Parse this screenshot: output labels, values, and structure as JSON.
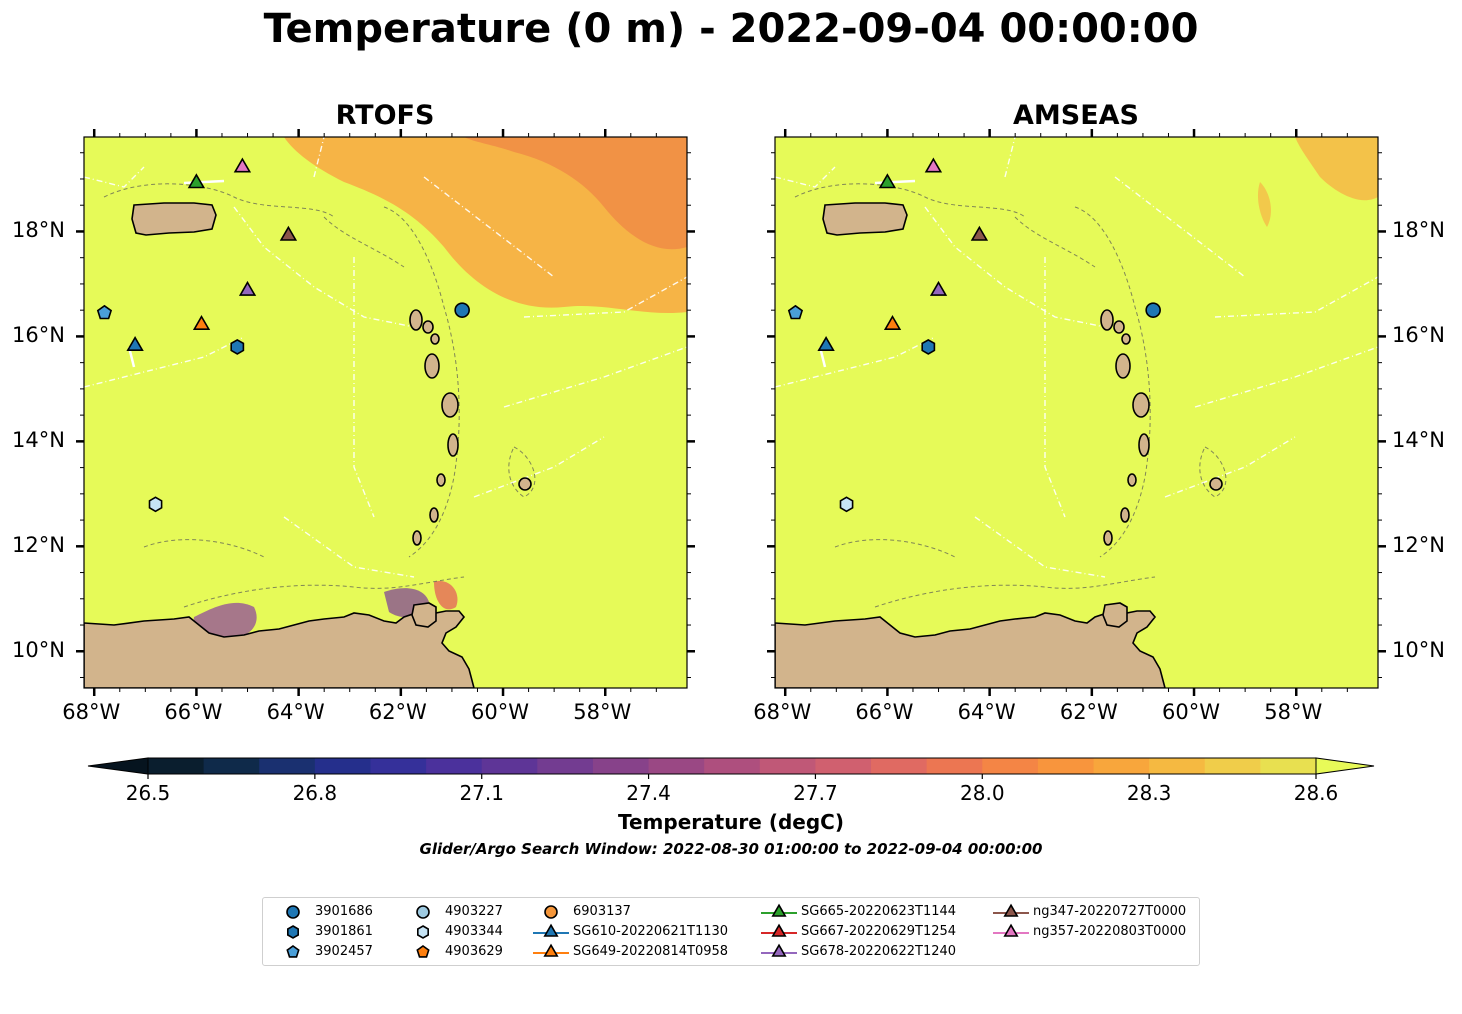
{
  "title": "Temperature (0 m) - 2022-09-04 00:00:00",
  "panels": [
    {
      "title": "RTOFS"
    },
    {
      "title": "AMSEAS"
    }
  ],
  "axes": {
    "x_ticks": [
      "68°W",
      "66°W",
      "64°W",
      "62°W",
      "60°W",
      "58°W"
    ],
    "y_ticks": [
      "18°N",
      "16°N",
      "14°N",
      "12°N",
      "10°N"
    ],
    "lon_range": [
      -68.2,
      -56.4
    ],
    "lat_range": [
      9.3,
      19.8
    ]
  },
  "colorbar": {
    "ticks": [
      "26.5",
      "26.8",
      "27.1",
      "27.4",
      "27.7",
      "28.0",
      "28.3",
      "28.6"
    ],
    "label": "Temperature (degC)",
    "range": [
      26.5,
      28.6
    ],
    "colors": [
      "#0a1e2e",
      "#0f2a4a",
      "#1a3070",
      "#252f8c",
      "#35309a",
      "#4b319c",
      "#5e3597",
      "#733c91",
      "#87428a",
      "#9a4884",
      "#ae4f7e",
      "#c05877",
      "#d0606f",
      "#e06a62",
      "#ec7652",
      "#f48545",
      "#f8953d",
      "#f8a63c",
      "#f5b941",
      "#f0cd4a",
      "#e8e050"
    ],
    "extend_min_color": "#06141f",
    "extend_max_color": "#e8fa58"
  },
  "search_window": "Glider/Argo Search Window: 2022-08-30 01:00:00 to 2022-09-04 00:00:00",
  "colors": {
    "ocean": "#e6fa58",
    "land": "#d2b48c",
    "warm": "#f6b446",
    "hot": "#f08a45"
  },
  "legend": [
    {
      "label": "3901686",
      "marker": "circle",
      "color": "#1f77b4"
    },
    {
      "label": "3901861",
      "marker": "hexagon",
      "color": "#1f77b4"
    },
    {
      "label": "3902457",
      "marker": "pentagon",
      "color": "#4a9fd8"
    },
    {
      "label": "4903227",
      "marker": "circle",
      "color": "#9ecae1"
    },
    {
      "label": "4903344",
      "marker": "hexagon",
      "color": "#c6e4f5"
    },
    {
      "label": "4903629",
      "marker": "pentagon",
      "color": "#ff7f0e"
    },
    {
      "label": "6903137",
      "marker": "circle",
      "color": "#f5963a"
    },
    {
      "label": "SG610-20220621T1130",
      "marker": "triangle-line",
      "color": "#1f77b4"
    },
    {
      "label": "SG649-20220814T0958",
      "marker": "triangle-line",
      "color": "#ff7f0e"
    },
    {
      "label": "SG665-20220623T1144",
      "marker": "triangle-line",
      "color": "#2ca02c"
    },
    {
      "label": "SG667-20220629T1254",
      "marker": "triangle-line",
      "color": "#d62728"
    },
    {
      "label": "SG678-20220622T1240",
      "marker": "triangle-line",
      "color": "#9467bd"
    },
    {
      "label": "ng347-20220727T0000",
      "marker": "triangle-line",
      "color": "#8c564b"
    },
    {
      "label": "ng357-20220803T0000",
      "marker": "triangle-line",
      "color": "#e377c2"
    }
  ],
  "platforms": [
    {
      "id": "3901686",
      "marker": "circle",
      "color": "#1f77b4",
      "lon": -60.8,
      "lat": 16.5
    },
    {
      "id": "3901861",
      "marker": "hexagon",
      "color": "#1f77b4",
      "lon": -65.2,
      "lat": 15.8
    },
    {
      "id": "3902457",
      "marker": "pentagon",
      "color": "#4a9fd8",
      "lon": -67.8,
      "lat": 16.45
    },
    {
      "id": "4903344",
      "marker": "hexagon",
      "color": "#c6e4f5",
      "lon": -66.8,
      "lat": 12.8
    },
    {
      "id": "SG610-20220621T1130",
      "marker": "triangle",
      "color": "#1f77b4",
      "lon": -67.2,
      "lat": 15.85
    },
    {
      "id": "SG649-20220814T0958",
      "marker": "triangle",
      "color": "#ff7f0e",
      "lon": -65.9,
      "lat": 16.25
    },
    {
      "id": "SG665-20220623T1144",
      "marker": "triangle",
      "color": "#2ca02c",
      "lon": -66.0,
      "lat": 18.95
    },
    {
      "id": "SG678-20220622T1240",
      "marker": "triangle",
      "color": "#9467bd",
      "lon": -65.0,
      "lat": 16.9
    },
    {
      "id": "ng347-20220727T0000",
      "marker": "triangle",
      "color": "#8c564b",
      "lon": -64.2,
      "lat": 17.95
    },
    {
      "id": "ng357-20220803T0000",
      "marker": "triangle",
      "color": "#e377c2",
      "lon": -65.1,
      "lat": 19.25
    }
  ]
}
